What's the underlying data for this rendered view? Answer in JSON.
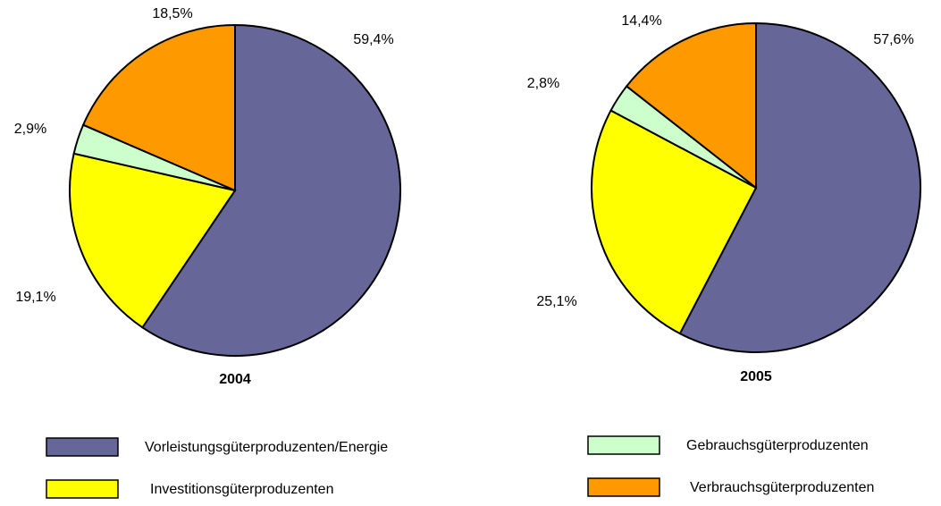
{
  "legend": {
    "categories": [
      "Vorleistungsgüterproduzenten/Energie",
      "Investitionsgüterproduzenten",
      "Gebrauchsgüterproduzenten",
      "Verbrauchsgüterproduzenten"
    ],
    "colors": [
      "#666699",
      "#ffff00",
      "#ccffcc",
      "#ff9900"
    ]
  },
  "chart_data": [
    {
      "type": "pie",
      "title": "2004",
      "values": [
        59.4,
        19.1,
        2.9,
        18.5
      ],
      "value_labels": [
        "59,4%",
        "19,1%",
        "2,9%",
        "18,5%"
      ]
    },
    {
      "type": "pie",
      "title": "2005",
      "values": [
        57.6,
        25.1,
        2.8,
        14.4
      ],
      "value_labels": [
        "57,6%",
        "25,1%",
        "2,8%",
        "14,4%"
      ]
    }
  ]
}
